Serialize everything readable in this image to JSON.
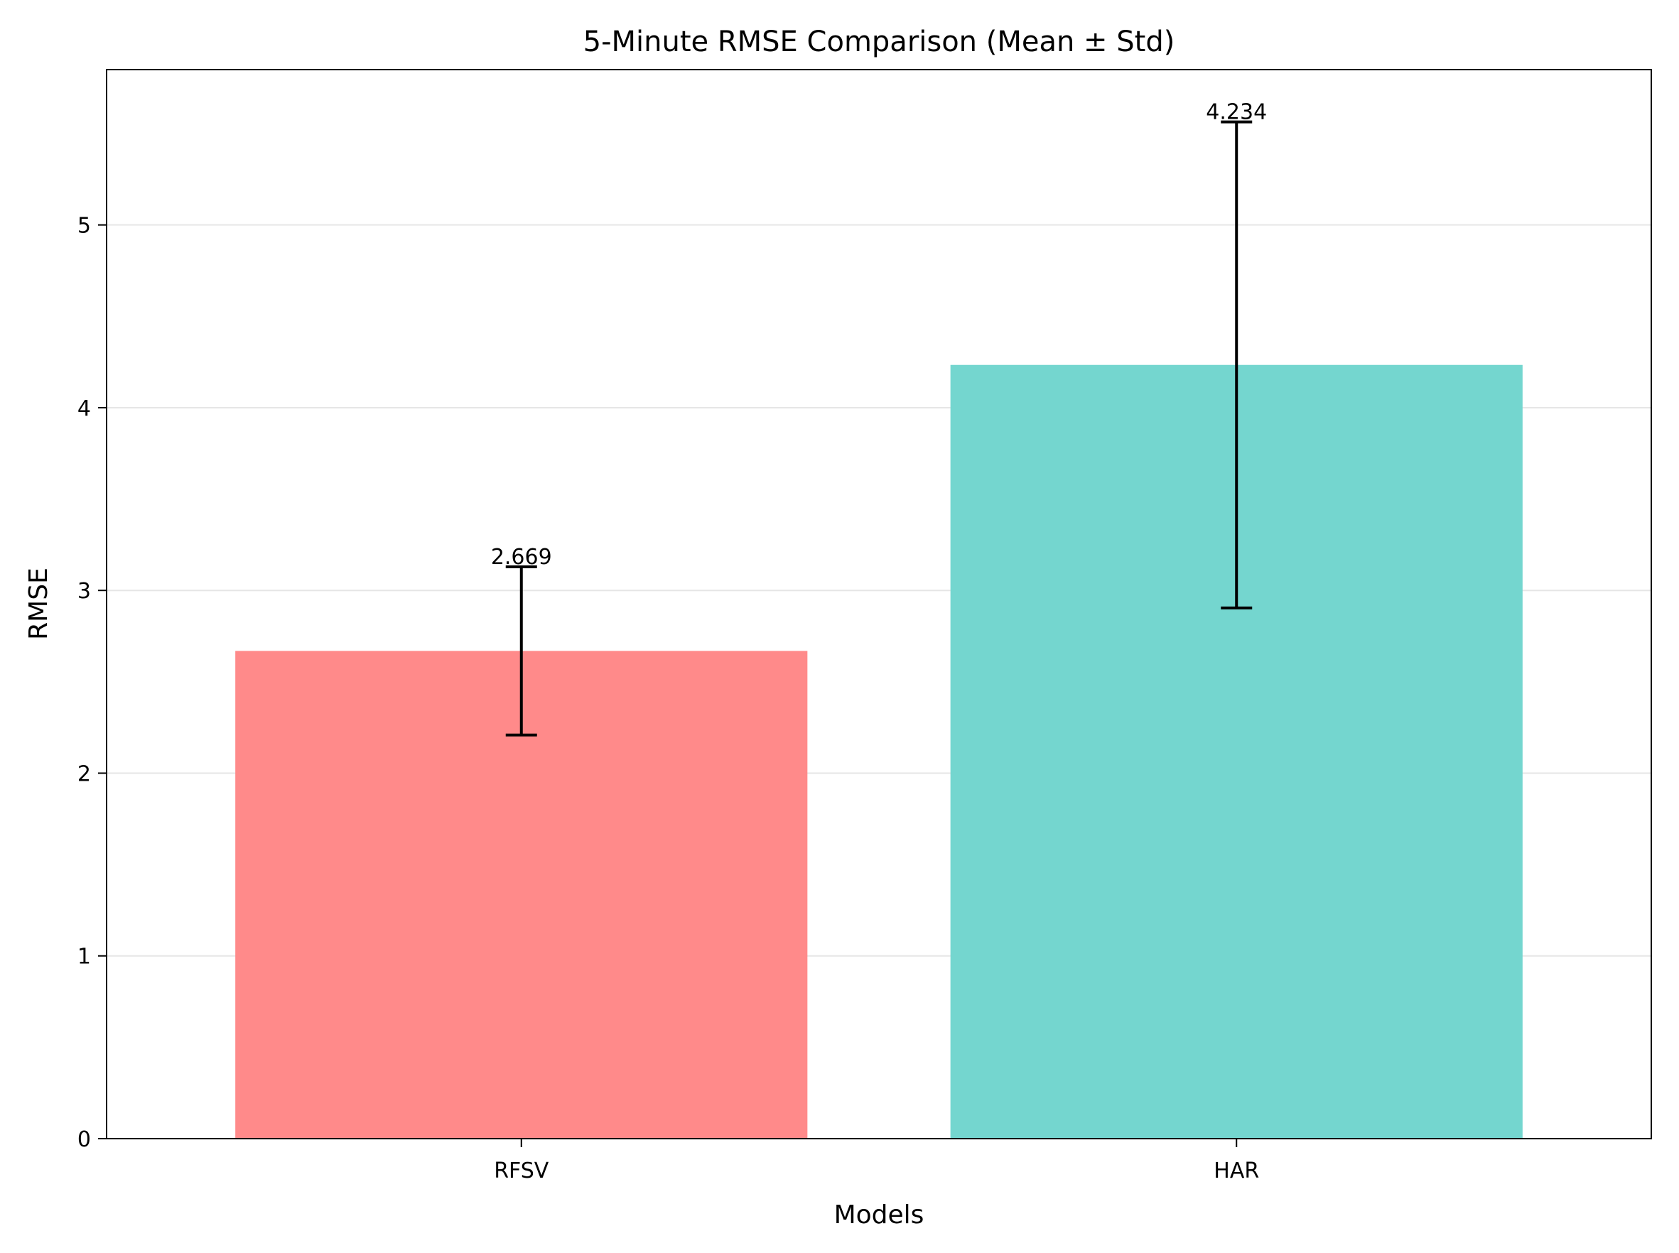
{
  "chart_data": {
    "type": "bar",
    "title": "5-Minute RMSE Comparison (Mean ± Std)",
    "xlabel": "Models",
    "ylabel": "RMSE",
    "categories": [
      "RFSV",
      "HAR"
    ],
    "values": [
      2.669,
      4.234
    ],
    "errors": [
      0.46,
      1.33
    ],
    "value_labels": [
      "2.669",
      "4.234"
    ],
    "colors": [
      "#ff8a8a",
      "#74d6cf"
    ],
    "ylim": [
      0,
      5.85
    ],
    "yticks": [
      0,
      1,
      2,
      3,
      4,
      5
    ],
    "ytick_labels": [
      "0",
      "1",
      "2",
      "3",
      "4",
      "5"
    ],
    "grid": "y",
    "legend": "none"
  }
}
